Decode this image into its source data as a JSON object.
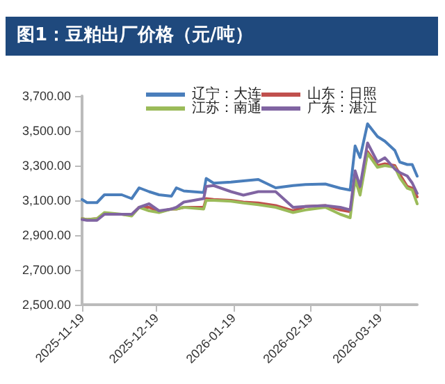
{
  "chart_data": {
    "type": "line",
    "title": "图1：豆粕出厂价格（元/吨）",
    "x": [
      "2025-11-19",
      "2025-11-21",
      "2025-11-25",
      "2025-11-28",
      "2025-12-05",
      "2025-12-09",
      "2025-12-12",
      "2025-12-16",
      "2025-12-20",
      "2025-12-25",
      "2025-12-27",
      "2025-12-30",
      "2026-01-07",
      "2026-01-08",
      "2026-01-11",
      "2026-01-18",
      "2026-01-23",
      "2026-01-29",
      "2026-02-05",
      "2026-02-12",
      "2026-02-17",
      "2026-02-25",
      "2026-03-03",
      "2026-03-07",
      "2026-03-09",
      "2026-03-11",
      "2026-03-14",
      "2026-03-18",
      "2026-03-21",
      "2026-03-25",
      "2026-03-27",
      "2026-03-30",
      "2026-04-01",
      "2026-04-03"
    ],
    "series": [
      {
        "name": "辽宁：大连",
        "color": "#4a7ebb",
        "values": [
          3105,
          3087,
          3087,
          3132,
          3132,
          3110,
          3172,
          3150,
          3132,
          3124,
          3172,
          3154,
          3145,
          3226,
          3199,
          3205,
          3212,
          3220,
          3172,
          3185,
          3191,
          3194,
          3170,
          3159,
          3413,
          3346,
          3540,
          3467,
          3440,
          3387,
          3320,
          3306,
          3306,
          3239
        ]
      },
      {
        "name": "山东：日照",
        "color": "#c0504d",
        "values": [
          2995,
          2990,
          2995,
          3020,
          3020,
          3015,
          3060,
          3060,
          3035,
          3050,
          3050,
          3060,
          3060,
          3110,
          3105,
          3100,
          3090,
          3085,
          3070,
          3040,
          3065,
          3070,
          3045,
          3035,
          3230,
          3150,
          3380,
          3300,
          3310,
          3300,
          3250,
          3180,
          3170,
          3120
        ]
      },
      {
        "name": "江苏：南通",
        "color": "#9bbb59",
        "values": [
          2995,
          2990,
          2995,
          3030,
          3020,
          3010,
          3060,
          3040,
          3030,
          3050,
          3050,
          3060,
          3050,
          3100,
          3100,
          3095,
          3085,
          3075,
          3060,
          3030,
          3045,
          3060,
          3020,
          3000,
          3220,
          3130,
          3370,
          3290,
          3300,
          3290,
          3230,
          3170,
          3160,
          3080
        ]
      },
      {
        "name": "广东：湛江",
        "color": "#8064a2",
        "values": [
          2990,
          2985,
          2985,
          3020,
          3020,
          3020,
          3060,
          3080,
          3040,
          3050,
          3060,
          3090,
          3110,
          3180,
          3185,
          3150,
          3130,
          3150,
          3150,
          3060,
          3065,
          3070,
          3060,
          3045,
          3270,
          3180,
          3430,
          3320,
          3345,
          3280,
          3260,
          3240,
          3200,
          3140
        ]
      }
    ],
    "xlim": [
      "2025-11-19",
      "2026-04-03"
    ],
    "xticks": [
      "2025-11-19",
      "2025-12-19",
      "2026-01-19",
      "2026-02-19",
      "2026-03-19"
    ],
    "ylim": [
      2500,
      3700
    ],
    "yticks": [
      {
        "value": 2500,
        "label": "2,500.00"
      },
      {
        "value": 2700,
        "label": "2,700.00"
      },
      {
        "value": 2900,
        "label": "2,900.00"
      },
      {
        "value": 3100,
        "label": "3,100.00"
      },
      {
        "value": 3300,
        "label": "3,300.00"
      },
      {
        "value": 3500,
        "label": "3,500.00"
      },
      {
        "value": 3700,
        "label": "3,700.00"
      }
    ],
    "grid": false,
    "legend": "top",
    "marker": "none",
    "line_style": "solid"
  }
}
